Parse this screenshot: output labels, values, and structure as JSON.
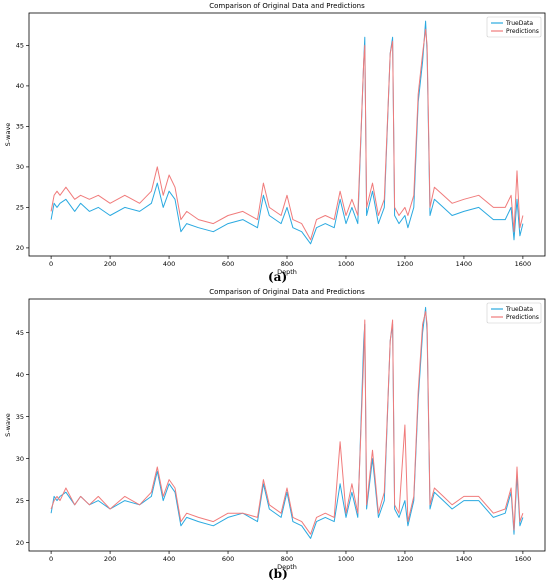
{
  "colors": {
    "true": "#2aa9e0",
    "pred": "#f07b7b"
  },
  "panels": [
    {
      "label": "(a)"
    },
    {
      "label": "(b)"
    }
  ],
  "chart_data": [
    {
      "type": "line",
      "title": "Comparison of Original Data and Predictions",
      "xlabel": "Depth",
      "ylabel": "S-wave",
      "xlim": [
        -75,
        1675
      ],
      "ylim": [
        19,
        49
      ],
      "xticks": [
        0,
        200,
        400,
        600,
        800,
        1000,
        1200,
        1400,
        1600
      ],
      "yticks": [
        20,
        25,
        30,
        35,
        40,
        45
      ],
      "legend": "top-right",
      "series": [
        {
          "name": "TrueData",
          "x": [
            0,
            10,
            20,
            30,
            50,
            80,
            100,
            130,
            160,
            200,
            250,
            300,
            340,
            360,
            380,
            400,
            420,
            440,
            460,
            500,
            550,
            600,
            650,
            700,
            720,
            740,
            780,
            800,
            820,
            850,
            880,
            900,
            930,
            960,
            980,
            1000,
            1020,
            1040,
            1060,
            1064,
            1070,
            1090,
            1110,
            1130,
            1150,
            1158,
            1165,
            1180,
            1200,
            1210,
            1230,
            1245,
            1260,
            1270,
            1275,
            1285,
            1300,
            1330,
            1360,
            1400,
            1450,
            1500,
            1540,
            1560,
            1570,
            1580,
            1590,
            1600
          ],
          "values": [
            23.5,
            25.5,
            25,
            25.5,
            26,
            24.5,
            25.5,
            24.5,
            25,
            24,
            25,
            24.5,
            25.5,
            28,
            25,
            27,
            26,
            22,
            23,
            22.5,
            22,
            23,
            23.5,
            22.5,
            26.5,
            24,
            23,
            25,
            22.5,
            22,
            20.5,
            22.5,
            23,
            22.5,
            26,
            23,
            25,
            23,
            43,
            46,
            24,
            27,
            23,
            25,
            44,
            46,
            24,
            23,
            24,
            22.5,
            25,
            38,
            43,
            48,
            44,
            24,
            26,
            25,
            24,
            24.5,
            25,
            23.5,
            23.5,
            25,
            21,
            26,
            21.5,
            23
          ]
        },
        {
          "name": "Predictions",
          "x": [
            0,
            10,
            20,
            30,
            50,
            80,
            100,
            130,
            160,
            200,
            250,
            300,
            340,
            360,
            380,
            400,
            420,
            440,
            460,
            500,
            550,
            600,
            650,
            700,
            720,
            740,
            780,
            800,
            820,
            850,
            880,
            900,
            930,
            960,
            980,
            1000,
            1020,
            1040,
            1060,
            1064,
            1070,
            1090,
            1110,
            1130,
            1150,
            1158,
            1165,
            1180,
            1200,
            1210,
            1230,
            1245,
            1260,
            1270,
            1275,
            1285,
            1300,
            1330,
            1360,
            1400,
            1450,
            1500,
            1540,
            1560,
            1570,
            1580,
            1590,
            1600
          ],
          "values": [
            24.5,
            26.5,
            27,
            26.5,
            27.5,
            26,
            26.5,
            26,
            26.5,
            25.5,
            26.5,
            25.5,
            27,
            30,
            26.5,
            29,
            27.5,
            23.5,
            24.5,
            23.5,
            23,
            24,
            24.5,
            23.5,
            28,
            25,
            24,
            26.5,
            23.5,
            23,
            21,
            23.5,
            24,
            23.5,
            27,
            24,
            26,
            24,
            43,
            45,
            25,
            28,
            24,
            26,
            44,
            45.5,
            25,
            24,
            25,
            24,
            26.5,
            39,
            44,
            47,
            45,
            25,
            27.5,
            26.5,
            25.5,
            26,
            26.5,
            25,
            25,
            26.5,
            22,
            29.5,
            22.5,
            24
          ]
        }
      ]
    },
    {
      "type": "line",
      "title": "Comparison of Original Data and Predictions",
      "xlabel": "Depth",
      "ylabel": "S-wave",
      "xlim": [
        -75,
        1675
      ],
      "ylim": [
        19,
        49
      ],
      "xticks": [
        0,
        200,
        400,
        600,
        800,
        1000,
        1200,
        1400,
        1600
      ],
      "yticks": [
        20,
        25,
        30,
        35,
        40,
        45
      ],
      "legend": "top-right",
      "series": [
        {
          "name": "TrueData",
          "x": [
            0,
            10,
            20,
            30,
            50,
            80,
            100,
            130,
            160,
            200,
            250,
            300,
            340,
            360,
            380,
            400,
            420,
            440,
            460,
            500,
            550,
            600,
            650,
            700,
            720,
            740,
            780,
            800,
            820,
            850,
            880,
            900,
            930,
            960,
            980,
            1000,
            1020,
            1040,
            1060,
            1064,
            1070,
            1090,
            1110,
            1130,
            1150,
            1158,
            1165,
            1180,
            1200,
            1210,
            1230,
            1245,
            1260,
            1270,
            1275,
            1285,
            1300,
            1330,
            1360,
            1400,
            1450,
            1500,
            1540,
            1560,
            1570,
            1580,
            1590,
            1600
          ],
          "values": [
            23.5,
            25.5,
            25,
            25.5,
            26,
            24.5,
            25.5,
            24.5,
            25,
            24,
            25,
            24.5,
            25.5,
            28.5,
            25,
            27,
            26,
            22,
            23,
            22.5,
            22,
            23,
            23.5,
            22.5,
            27,
            24,
            23,
            26,
            22.5,
            22,
            20.5,
            22.5,
            23,
            22.5,
            27,
            23,
            26,
            23,
            44,
            46,
            24,
            30,
            23,
            25,
            44,
            46,
            24,
            23,
            25,
            22,
            25,
            37,
            45,
            48,
            45,
            24,
            26,
            25,
            24,
            25,
            25,
            23,
            23.5,
            26,
            21,
            28,
            22,
            23
          ]
        },
        {
          "name": "Predictions",
          "x": [
            0,
            10,
            20,
            30,
            50,
            80,
            100,
            130,
            160,
            200,
            250,
            300,
            340,
            360,
            380,
            400,
            420,
            440,
            460,
            500,
            550,
            600,
            650,
            700,
            720,
            740,
            780,
            800,
            820,
            850,
            880,
            900,
            930,
            960,
            980,
            1000,
            1020,
            1040,
            1060,
            1064,
            1070,
            1090,
            1110,
            1130,
            1150,
            1158,
            1165,
            1180,
            1200,
            1210,
            1230,
            1245,
            1260,
            1270,
            1275,
            1285,
            1300,
            1330,
            1360,
            1400,
            1450,
            1500,
            1540,
            1560,
            1570,
            1580,
            1590,
            1600
          ],
          "values": [
            24,
            25,
            25.5,
            25,
            26.5,
            24.5,
            25.5,
            24.5,
            25.5,
            24,
            25.5,
            24.5,
            26,
            29,
            25.5,
            27.5,
            26.5,
            22.5,
            23.5,
            23,
            22.5,
            23.5,
            23.5,
            23,
            27.5,
            24.5,
            23.5,
            26.5,
            23,
            22.5,
            21,
            23,
            23.5,
            23,
            32,
            23.5,
            27,
            23.5,
            42,
            46.5,
            24.5,
            31,
            23.5,
            26,
            44,
            46.5,
            24.5,
            23.5,
            34,
            22.5,
            25.5,
            38,
            46,
            47.5,
            46,
            24.5,
            26.5,
            25.5,
            24.5,
            25.5,
            25.5,
            23.5,
            24,
            26.5,
            21.5,
            29,
            22.5,
            23.5
          ]
        }
      ]
    }
  ]
}
